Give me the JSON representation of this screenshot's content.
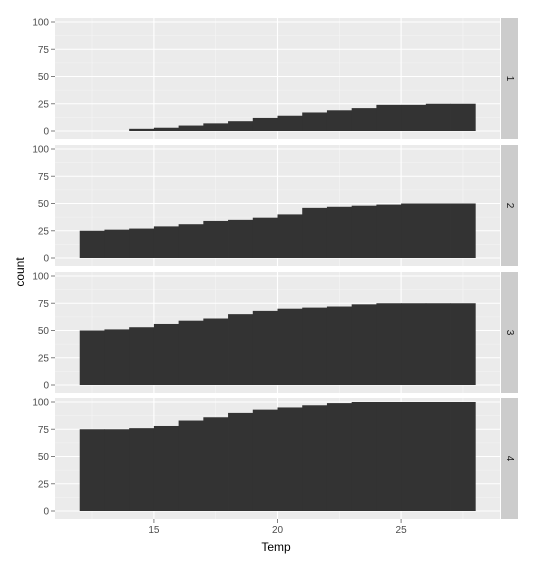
{
  "colors": {
    "panel_bg": "#ebebeb",
    "grid_major": "#ffffff",
    "grid_minor": "#f5f5f5",
    "bar": "#333333",
    "strip_bg": "#cccccc",
    "tick_mark": "#7f7f7f"
  },
  "chart_data": {
    "type": "bar",
    "facet": "rows",
    "xlabel": "Temp",
    "ylabel": "count",
    "xlim": [
      11,
      29
    ],
    "ylim": [
      0,
      100
    ],
    "x_ticks": [
      15,
      20,
      25
    ],
    "y_ticks": [
      0,
      25,
      50,
      75,
      100
    ],
    "grid": true,
    "bin_width": 1,
    "bin_starts": [
      12,
      13,
      14,
      15,
      16,
      17,
      18,
      19,
      20,
      21,
      22,
      23,
      24,
      25,
      26,
      27
    ],
    "panels": [
      {
        "strip": "1",
        "values": [
          0,
          0,
          2,
          3,
          5,
          7,
          9,
          12,
          14,
          17,
          19,
          21,
          24,
          24,
          25,
          25
        ]
      },
      {
        "strip": "2",
        "values": [
          25,
          26,
          27,
          29,
          31,
          34,
          35,
          37,
          40,
          46,
          47,
          48,
          49,
          50,
          50,
          50
        ]
      },
      {
        "strip": "3",
        "values": [
          50,
          51,
          53,
          56,
          59,
          61,
          65,
          68,
          70,
          71,
          72,
          74,
          75,
          75,
          75,
          75
        ]
      },
      {
        "strip": "4",
        "values": [
          75,
          75,
          76,
          78,
          83,
          86,
          90,
          93,
          95,
          97,
          99,
          100,
          100,
          100,
          100,
          100
        ]
      }
    ]
  }
}
